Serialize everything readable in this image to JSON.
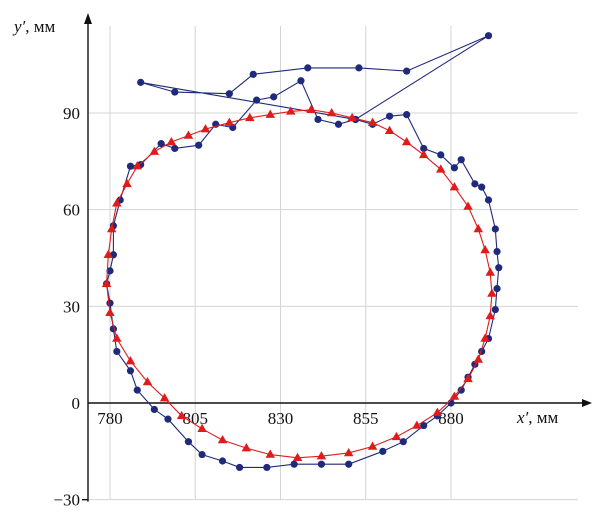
{
  "chart_data": {
    "type": "scatter",
    "title": "",
    "xlabel": {
      "var": "x′",
      "unit": ", мм"
    },
    "ylabel": {
      "var": "y′",
      "unit": ", мм"
    },
    "xlim": [
      770,
      895
    ],
    "ylim": [
      -30,
      113
    ],
    "x_ticks": [
      780,
      805,
      830,
      855,
      880
    ],
    "y_ticks": [
      -30,
      0,
      30,
      60,
      90
    ],
    "grid": true,
    "legend": "none",
    "series": [
      {
        "marker": "circle",
        "color": "#1f2a7a",
        "closed": true,
        "points": [
          [
            789,
            99.5
          ],
          [
            799,
            96.5
          ],
          [
            815,
            96
          ],
          [
            822,
            102
          ],
          [
            838,
            104
          ],
          [
            853,
            104
          ],
          [
            867,
            103
          ],
          [
            891,
            114
          ],
          [
            852,
            88
          ],
          [
            857,
            86.5
          ],
          [
            862,
            89
          ],
          [
            867,
            89.5
          ],
          [
            872,
            79
          ],
          [
            877,
            77
          ],
          [
            881,
            73
          ],
          [
            883,
            75.5
          ],
          [
            887,
            68
          ],
          [
            889,
            67
          ],
          [
            891,
            63
          ],
          [
            893,
            54
          ],
          [
            893.5,
            47
          ],
          [
            894,
            42
          ],
          [
            893.5,
            35.5
          ],
          [
            893,
            29
          ],
          [
            891,
            20
          ],
          [
            889,
            16
          ],
          [
            887,
            12
          ],
          [
            885,
            8
          ],
          [
            883,
            4
          ],
          [
            880,
            0
          ],
          [
            876,
            -4
          ],
          [
            872,
            -7
          ],
          [
            866,
            -12
          ],
          [
            860,
            -15
          ],
          [
            850,
            -19
          ],
          [
            842,
            -19
          ],
          [
            834,
            -19
          ],
          [
            826,
            -20
          ],
          [
            818,
            -20
          ],
          [
            813,
            -18
          ],
          [
            807,
            -16
          ],
          [
            803,
            -12
          ],
          [
            797,
            -5
          ],
          [
            793,
            -2
          ],
          [
            788,
            4
          ],
          [
            786,
            10
          ],
          [
            782,
            16
          ],
          [
            781,
            23
          ],
          [
            780,
            31
          ],
          [
            779,
            37
          ],
          [
            780,
            41
          ],
          [
            781,
            46
          ],
          [
            781,
            55
          ],
          [
            783,
            63
          ],
          [
            786,
            73.5
          ],
          [
            789,
            74
          ],
          [
            795,
            80.5
          ],
          [
            799,
            79
          ],
          [
            806,
            80
          ],
          [
            811,
            86.5
          ],
          [
            816,
            85.5
          ],
          [
            823,
            94
          ],
          [
            828,
            95
          ],
          [
            836,
            100
          ],
          [
            841,
            88
          ],
          [
            847,
            86.5
          ],
          [
            852,
            88
          ]
        ]
      },
      {
        "marker": "triangle",
        "color": "#e01b1b",
        "closed": true,
        "points": [
          [
            827,
            89.5
          ],
          [
            833,
            90.5
          ],
          [
            839,
            91
          ],
          [
            845,
            90
          ],
          [
            851,
            88.5
          ],
          [
            857,
            87
          ],
          [
            862,
            84.5
          ],
          [
            867,
            81
          ],
          [
            872,
            77
          ],
          [
            877,
            72.5
          ],
          [
            881,
            67
          ],
          [
            885,
            61
          ],
          [
            888,
            54
          ],
          [
            890,
            47.5
          ],
          [
            891.5,
            40.5
          ],
          [
            892,
            34
          ],
          [
            891.5,
            27
          ],
          [
            890,
            20
          ],
          [
            888,
            13.5
          ],
          [
            885,
            7.5
          ],
          [
            881,
            2
          ],
          [
            876,
            -3
          ],
          [
            870,
            -7
          ],
          [
            864,
            -10.5
          ],
          [
            857,
            -13.5
          ],
          [
            850,
            -15.5
          ],
          [
            842,
            -16.5
          ],
          [
            835,
            -17
          ],
          [
            827,
            -16
          ],
          [
            820,
            -14
          ],
          [
            813,
            -11.5
          ],
          [
            807,
            -8
          ],
          [
            801,
            -4
          ],
          [
            796,
            1.5
          ],
          [
            791,
            6.5
          ],
          [
            786,
            13
          ],
          [
            782,
            20
          ],
          [
            780,
            28
          ],
          [
            779,
            37
          ],
          [
            779.5,
            46
          ],
          [
            780.5,
            54
          ],
          [
            782,
            62
          ],
          [
            785,
            68
          ],
          [
            788,
            73.5
          ],
          [
            793,
            78
          ],
          [
            798,
            81
          ],
          [
            803,
            83
          ],
          [
            808,
            85
          ],
          [
            815,
            87
          ],
          [
            821,
            88.5
          ]
        ]
      }
    ]
  }
}
